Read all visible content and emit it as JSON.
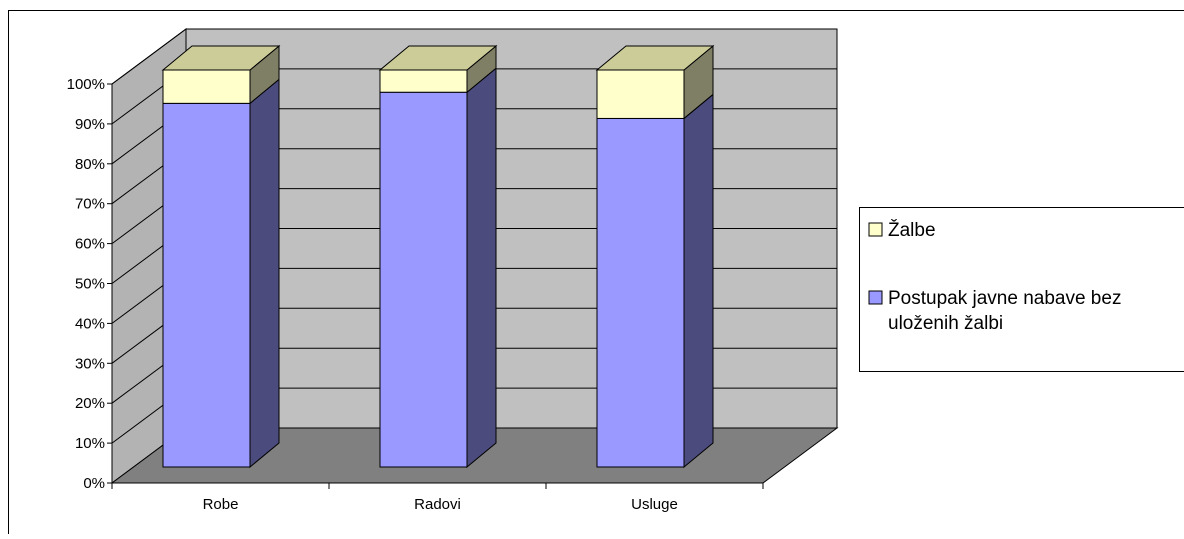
{
  "chart_data": {
    "type": "bar",
    "stacked": true,
    "percent_stacked": true,
    "three_d": true,
    "categories": [
      "Robe",
      "Radovi",
      "Usluge"
    ],
    "series": [
      {
        "name": "Postupak javne nabave bez uloženih žalbi",
        "values": [
          91.6,
          94.4,
          87.8
        ],
        "color": "#9999ff",
        "side_color": "#4b4b7d"
      },
      {
        "name": "Žalbe",
        "values": [
          8.4,
          5.6,
          12.2
        ],
        "color": "#ffffcc",
        "side_color": "#7f7f66"
      }
    ],
    "ylim": [
      0,
      100
    ],
    "yticks": [
      "0%",
      "10%",
      "20%",
      "30%",
      "40%",
      "50%",
      "60%",
      "70%",
      "80%",
      "90%",
      "100%"
    ],
    "grid": true,
    "legend_position": "right",
    "colors": {
      "wall": "#c0c0c0",
      "side_wall": "#b3b3b3",
      "floor": "#808080",
      "grid": "#000000"
    }
  },
  "legend": {
    "items": [
      {
        "label": "Žalbe",
        "color": "#ffffcc"
      },
      {
        "label_line1": "Postupak javne nabave bez",
        "label_line2": "uloženih žalbi",
        "color": "#9999ff"
      }
    ]
  }
}
